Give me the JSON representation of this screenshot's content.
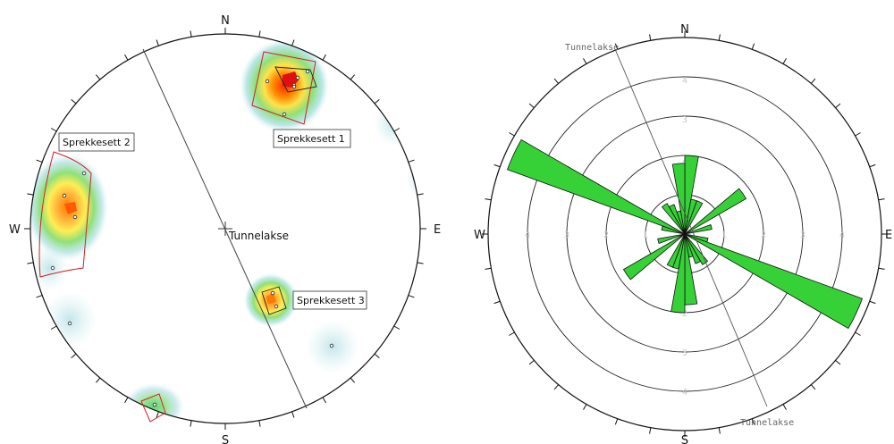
{
  "stereonet": {
    "compass": {
      "n": "N",
      "e": "E",
      "s": "S",
      "w": "W"
    },
    "center_label": "Tunnelakse",
    "sets": [
      {
        "name": "Sprekkesett 1"
      },
      {
        "name": "Sprekkesett 2"
      },
      {
        "name": "Sprekkesett 3"
      }
    ]
  },
  "rose": {
    "compass": {
      "n": "N",
      "e": "E",
      "s": "S",
      "w": "W"
    },
    "axis_label_top": "Tunnelakse",
    "axis_label_bottom": "Tunnelakse",
    "ring_labels": [
      "1",
      "2",
      "3",
      "4"
    ]
  },
  "chart_data": {
    "type": "rose",
    "bin_width_deg": 10,
    "rings": [
      1,
      2,
      3,
      4
    ],
    "bins": [
      {
        "azimuth": 5,
        "count": 2.0
      },
      {
        "azimuth": 15,
        "count": 0.9
      },
      {
        "azimuth": 25,
        "count": 0.9
      },
      {
        "azimuth": 55,
        "count": 1.8
      },
      {
        "azimuth": 75,
        "count": 0.7
      },
      {
        "azimuth": 105,
        "count": 0.6
      },
      {
        "azimuth": 115,
        "count": 4.8
      },
      {
        "azimuth": 145,
        "count": 0.9
      },
      {
        "azimuth": 155,
        "count": 0.8
      },
      {
        "azimuth": 165,
        "count": 0.6
      },
      {
        "azimuth": 175,
        "count": 1.8
      },
      {
        "azimuth": 185,
        "count": 2.0
      },
      {
        "azimuth": 195,
        "count": 0.9
      },
      {
        "azimuth": 205,
        "count": 0.9
      },
      {
        "azimuth": 235,
        "count": 1.8
      },
      {
        "azimuth": 255,
        "count": 0.7
      },
      {
        "azimuth": 285,
        "count": 0.6
      },
      {
        "azimuth": 295,
        "count": 4.8
      },
      {
        "azimuth": 325,
        "count": 0.9
      },
      {
        "azimuth": 335,
        "count": 0.8
      },
      {
        "azimuth": 345,
        "count": 0.6
      },
      {
        "azimuth": 355,
        "count": 1.8
      }
    ]
  }
}
